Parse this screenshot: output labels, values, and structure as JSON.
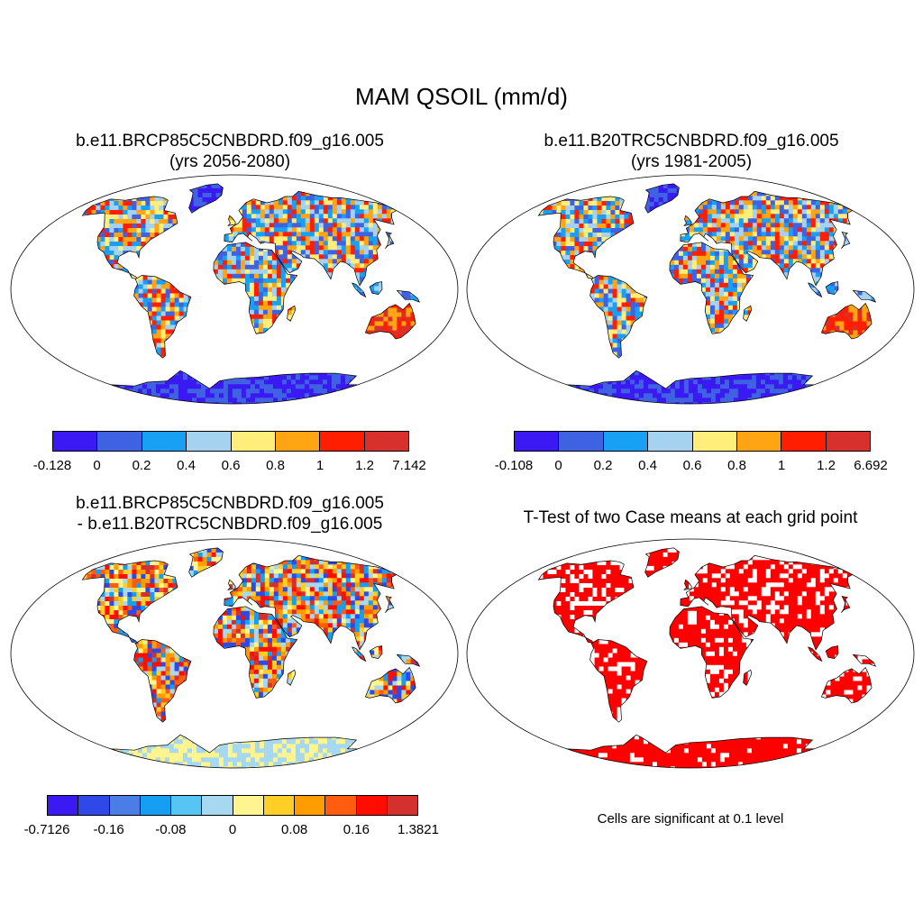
{
  "title": "MAM QSOIL (mm/d)",
  "panels": [
    {
      "title_line1": "b.e11.BRCP85C5CNBDRD.f09_g16.005",
      "title_line2": "(yrs 2056-2080)",
      "map_type": "scalar",
      "colorbar": {
        "colors": [
          "#3a19f2",
          "#3f62e3",
          "#18a1f4",
          "#a5d3ef",
          "#ffee7a",
          "#ffa412",
          "#ff1e00",
          "#d8302c"
        ],
        "labels": [
          "-0.128",
          "0",
          "0.2",
          "0.4",
          "0.6",
          "0.8",
          "1",
          "1.2",
          "7.142"
        ]
      }
    },
    {
      "title_line1": "b.e11.B20TRC5CNBDRD.f09_g16.005",
      "title_line2": "(yrs 1981-2005)",
      "map_type": "scalar",
      "colorbar": {
        "colors": [
          "#3a19f2",
          "#3f62e3",
          "#18a1f4",
          "#a5d3ef",
          "#ffee7a",
          "#ffa412",
          "#ff1e00",
          "#d8302c"
        ],
        "labels": [
          "-0.108",
          "0",
          "0.2",
          "0.4",
          "0.6",
          "0.8",
          "1",
          "1.2",
          "6.692"
        ]
      }
    },
    {
      "title_line1": "b.e11.BRCP85C5CNBDRD.f09_g16.005",
      "title_line2": "- b.e11.B20TRC5CNBDRD.f09_g16.005",
      "map_type": "difference",
      "colorbar": {
        "colors": [
          "#3a19f2",
          "#2f49e8",
          "#4a7de6",
          "#169ef2",
          "#57c5f3",
          "#a6d8ef",
          "#fff48e",
          "#ffce27",
          "#ff9d00",
          "#ff5c0f",
          "#ff0d00",
          "#d3302e"
        ],
        "labels": [
          "-0.7126",
          "-0.16",
          "-0.08",
          "0",
          "0.08",
          "0.16",
          "1.3821"
        ]
      }
    },
    {
      "title_line1": "T-Test of two Case means at each grid point",
      "title_line2": "",
      "map_type": "significance",
      "note": "Cells are significant at 0.1 level"
    }
  ]
}
